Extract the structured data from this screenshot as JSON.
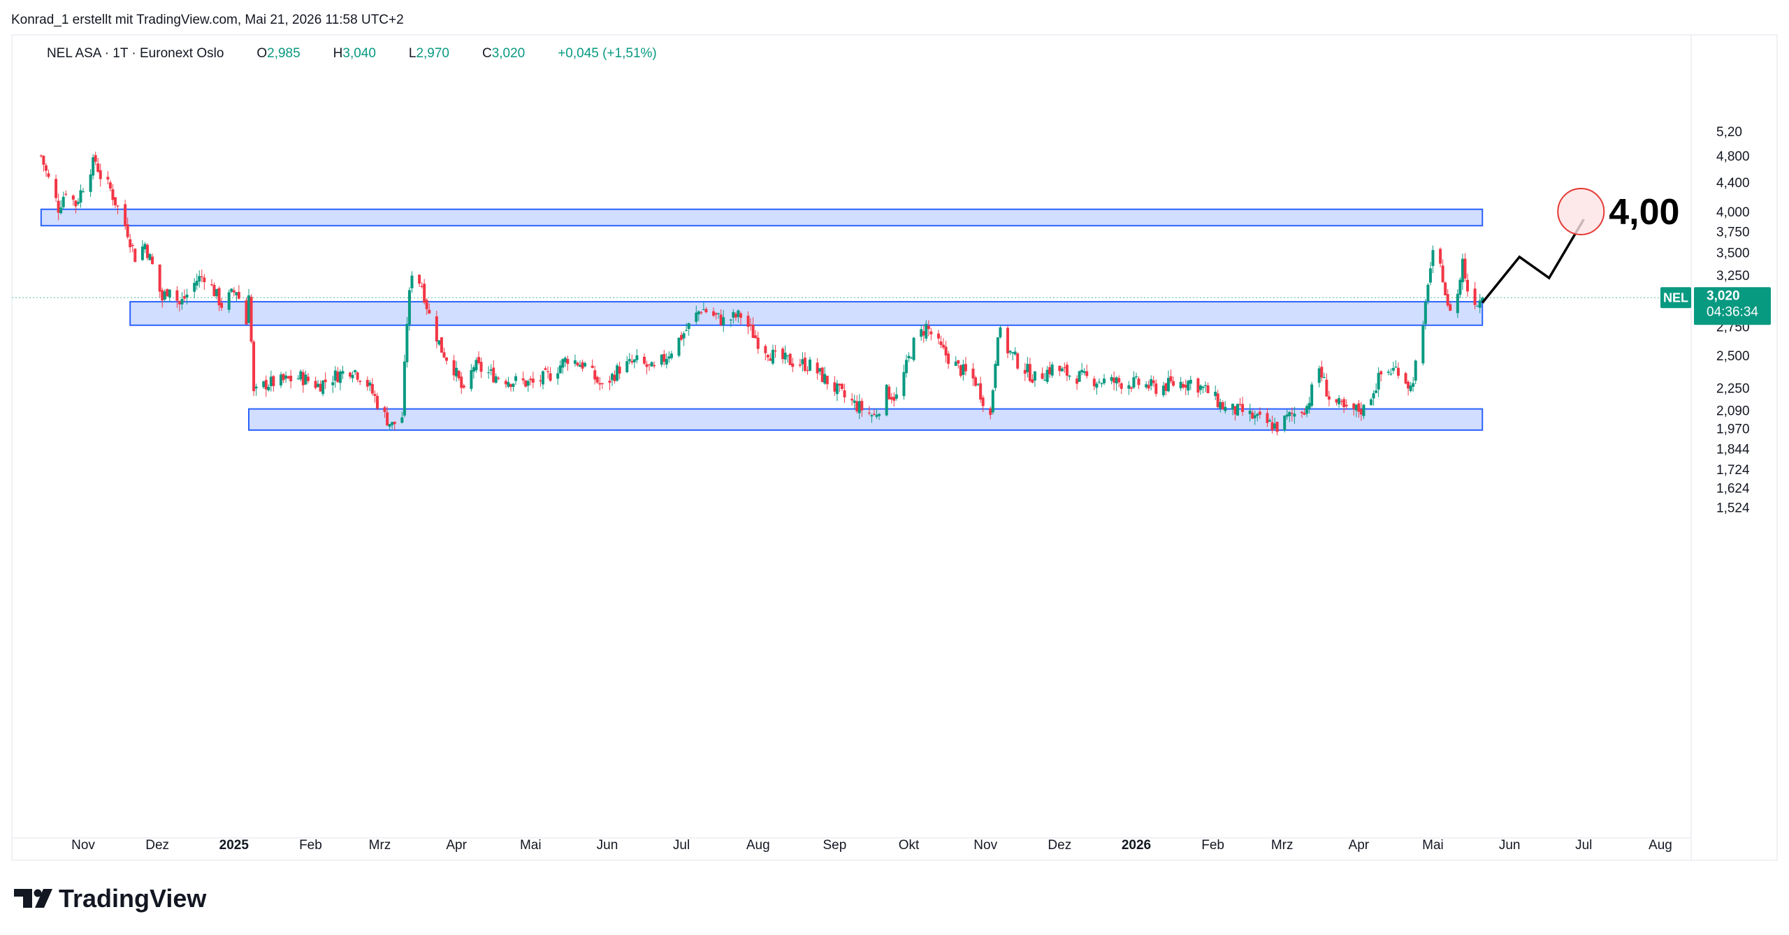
{
  "header": {
    "author_line": "Konrad_1 erstellt mit TradingView.com, Mai 21, 2026 11:58 UTC+2"
  },
  "legend": {
    "symbol_line": "NEL ASA · 1T · Euronext Oslo",
    "o_label": "O",
    "o_value": "2,985",
    "h_label": "H",
    "h_value": "3,040",
    "l_label": "L",
    "l_value": "2,970",
    "c_label": "C",
    "c_value": "3,020",
    "change": "+0,045 (+1,51%)"
  },
  "price_label": {
    "ticker": "NEL",
    "price": "3,020",
    "countdown": "04:36:34"
  },
  "annotation": {
    "target_text": "4,00"
  },
  "footer": {
    "brand": "TradingView"
  },
  "colors": {
    "up": "#089981",
    "down": "#f23645",
    "box_fill": "#d0dcff",
    "box_stroke": "#2962ff",
    "price_tag": "#089981",
    "axis_text": "#131722",
    "target_circle_fill": "#fde3e5",
    "target_circle_stroke": "#e53935"
  },
  "chart_data": {
    "type": "candlestick",
    "symbol": "NEL",
    "y_axis": {
      "scale": "log",
      "range": [
        1.45,
        5.35
      ],
      "ticks": [
        "5,20",
        "4,800",
        "4,400",
        "4,000",
        "3,750",
        "3,500",
        "3,250",
        "3,020",
        "2,750",
        "2,500",
        "2,250",
        "2,090",
        "1,970",
        "1,844",
        "1,724",
        "1,624",
        "1,524"
      ],
      "tick_values": [
        5.2,
        4.8,
        4.4,
        4.0,
        3.75,
        3.5,
        3.25,
        3.02,
        2.75,
        2.5,
        2.25,
        2.09,
        1.97,
        1.844,
        1.724,
        1.624,
        1.524
      ]
    },
    "x_axis": {
      "labels": [
        "Nov",
        "Dez",
        "2025",
        "Feb",
        "Mrz",
        "Apr",
        "Mai",
        "Jun",
        "Jul",
        "Aug",
        "Sep",
        "Okt",
        "Nov",
        "Dez",
        "2026",
        "Feb",
        "Mrz",
        "Apr",
        "Mai",
        "Jun",
        "Jul",
        "Aug"
      ],
      "bold_labels": [
        "2025",
        "2026"
      ],
      "label_dates": [
        "2024-11-01",
        "2024-12-01",
        "2025-01-01",
        "2025-02-01",
        "2025-03-01",
        "2025-04-01",
        "2025-05-01",
        "2025-06-01",
        "2025-07-01",
        "2025-08-01",
        "2025-09-01",
        "2025-10-01",
        "2025-11-01",
        "2025-12-01",
        "2026-01-01",
        "2026-02-01",
        "2026-03-01",
        "2026-04-01",
        "2026-05-01",
        "2026-06-01",
        "2026-07-01",
        "2026-08-01"
      ]
    },
    "zones": [
      {
        "start": "2024-10-15",
        "end": "2026-05-21",
        "low": 3.82,
        "high": 4.03
      },
      {
        "start": "2024-11-20",
        "end": "2026-05-21",
        "low": 2.76,
        "high": 2.98
      },
      {
        "start": "2025-01-07",
        "end": "2026-05-21",
        "low": 1.96,
        "high": 2.1
      }
    ],
    "projection": [
      {
        "date": "2026-05-21",
        "value": 2.97
      },
      {
        "date": "2026-06-05",
        "value": 3.45
      },
      {
        "date": "2026-06-17",
        "value": 3.22
      },
      {
        "date": "2026-07-01",
        "value": 3.9
      }
    ],
    "target": {
      "date": "2026-07-01",
      "value": 4.0
    },
    "last_price": 3.02,
    "anchors": [
      [
        "2024-10-15",
        4.8
      ],
      [
        "2024-10-17",
        4.55
      ],
      [
        "2024-10-22",
        4.05
      ],
      [
        "2024-10-25",
        4.3
      ],
      [
        "2024-10-29",
        4.1
      ],
      [
        "2024-11-04",
        4.62
      ],
      [
        "2024-11-06",
        4.72
      ],
      [
        "2024-11-08",
        4.5
      ],
      [
        "2024-11-12",
        4.3
      ],
      [
        "2024-11-15",
        4.05
      ],
      [
        "2024-11-19",
        3.75
      ],
      [
        "2024-11-22",
        3.45
      ],
      [
        "2024-11-26",
        3.6
      ],
      [
        "2024-11-29",
        3.35
      ],
      [
        "2024-12-03",
        3.0
      ],
      [
        "2024-12-06",
        3.15
      ],
      [
        "2024-12-10",
        2.95
      ],
      [
        "2024-12-13",
        3.05
      ],
      [
        "2024-12-17",
        3.2
      ],
      [
        "2024-12-20",
        3.25
      ],
      [
        "2024-12-24",
        3.08
      ],
      [
        "2024-12-27",
        2.95
      ],
      [
        "2025-01-02",
        3.1
      ],
      [
        "2025-01-06",
        2.78
      ],
      [
        "2025-01-07",
        3.1
      ],
      [
        "2025-01-09",
        2.2
      ],
      [
        "2025-01-14",
        2.28
      ],
      [
        "2025-01-21",
        2.3
      ],
      [
        "2025-01-28",
        2.33
      ],
      [
        "2025-02-04",
        2.27
      ],
      [
        "2025-02-11",
        2.34
      ],
      [
        "2025-02-18",
        2.4
      ],
      [
        "2025-02-24",
        2.28
      ],
      [
        "2025-03-03",
        2.05
      ],
      [
        "2025-03-06",
        1.99
      ],
      [
        "2025-03-10",
        2.05
      ],
      [
        "2025-03-12",
        2.8
      ],
      [
        "2025-03-14",
        3.3
      ],
      [
        "2025-03-18",
        3.15
      ],
      [
        "2025-03-21",
        2.85
      ],
      [
        "2025-03-26",
        2.55
      ],
      [
        "2025-03-31",
        2.4
      ],
      [
        "2025-04-04",
        2.2
      ],
      [
        "2025-04-08",
        2.42
      ],
      [
        "2025-04-15",
        2.35
      ],
      [
        "2025-04-24",
        2.3
      ],
      [
        "2025-05-02",
        2.28
      ],
      [
        "2025-05-09",
        2.35
      ],
      [
        "2025-05-16",
        2.48
      ],
      [
        "2025-05-23",
        2.42
      ],
      [
        "2025-05-30",
        2.25
      ],
      [
        "2025-06-06",
        2.4
      ],
      [
        "2025-06-13",
        2.45
      ],
      [
        "2025-06-20",
        2.38
      ],
      [
        "2025-06-27",
        2.55
      ],
      [
        "2025-07-04",
        2.75
      ],
      [
        "2025-07-09",
        2.92
      ],
      [
        "2025-07-14",
        2.85
      ],
      [
        "2025-07-18",
        2.8
      ],
      [
        "2025-07-25",
        2.85
      ],
      [
        "2025-08-01",
        2.62
      ],
      [
        "2025-08-08",
        2.48
      ],
      [
        "2025-08-15",
        2.45
      ],
      [
        "2025-08-22",
        2.42
      ],
      [
        "2025-08-29",
        2.3
      ],
      [
        "2025-09-05",
        2.18
      ],
      [
        "2025-09-12",
        2.1
      ],
      [
        "2025-09-17",
        2.05
      ],
      [
        "2025-09-22",
        2.22
      ],
      [
        "2025-09-26",
        2.18
      ],
      [
        "2025-10-03",
        2.6
      ],
      [
        "2025-10-08",
        2.75
      ],
      [
        "2025-10-14",
        2.55
      ],
      [
        "2025-10-21",
        2.4
      ],
      [
        "2025-10-28",
        2.3
      ],
      [
        "2025-11-03",
        2.05
      ],
      [
        "2025-11-06",
        2.72
      ],
      [
        "2025-11-10",
        2.55
      ],
      [
        "2025-11-14",
        2.45
      ],
      [
        "2025-11-21",
        2.32
      ],
      [
        "2025-11-28",
        2.4
      ],
      [
        "2025-12-05",
        2.35
      ],
      [
        "2025-12-12",
        2.32
      ],
      [
        "2025-12-19",
        2.3
      ],
      [
        "2026-01-02",
        2.28
      ],
      [
        "2026-01-09",
        2.25
      ],
      [
        "2026-01-16",
        2.28
      ],
      [
        "2026-01-23",
        2.3
      ],
      [
        "2026-01-30",
        2.22
      ],
      [
        "2026-02-06",
        2.1
      ],
      [
        "2026-02-13",
        2.08
      ],
      [
        "2026-02-20",
        2.02
      ],
      [
        "2026-02-27",
        1.98
      ],
      [
        "2026-03-04",
        2.05
      ],
      [
        "2026-03-11",
        2.12
      ],
      [
        "2026-03-16",
        2.4
      ],
      [
        "2026-03-20",
        2.18
      ],
      [
        "2026-03-27",
        2.08
      ],
      [
        "2026-04-03",
        2.1
      ],
      [
        "2026-04-10",
        2.35
      ],
      [
        "2026-04-17",
        2.4
      ],
      [
        "2026-04-22",
        2.25
      ],
      [
        "2026-04-27",
        2.7
      ],
      [
        "2026-04-29",
        3.2
      ],
      [
        "2026-05-01",
        3.45
      ],
      [
        "2026-05-05",
        3.25
      ],
      [
        "2026-05-07",
        2.9
      ],
      [
        "2026-05-11",
        3.05
      ],
      [
        "2026-05-13",
        3.4
      ],
      [
        "2026-05-15",
        3.1
      ],
      [
        "2026-05-19",
        2.98
      ],
      [
        "2026-05-21",
        3.02
      ]
    ]
  }
}
